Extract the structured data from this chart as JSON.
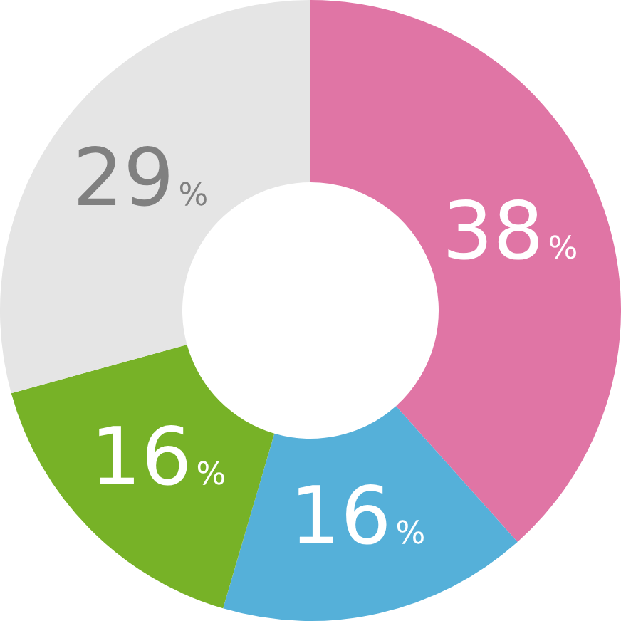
{
  "chart_data": {
    "type": "donut",
    "categories": [
      null,
      null,
      null,
      null
    ],
    "values": [
      38,
      16,
      16,
      29
    ],
    "colors": [
      "#e075a5",
      "#55b0d9",
      "#77b227",
      "#e5e5e5"
    ],
    "value_labels": [
      "38%",
      "16%",
      "16%",
      "29%"
    ]
  }
}
